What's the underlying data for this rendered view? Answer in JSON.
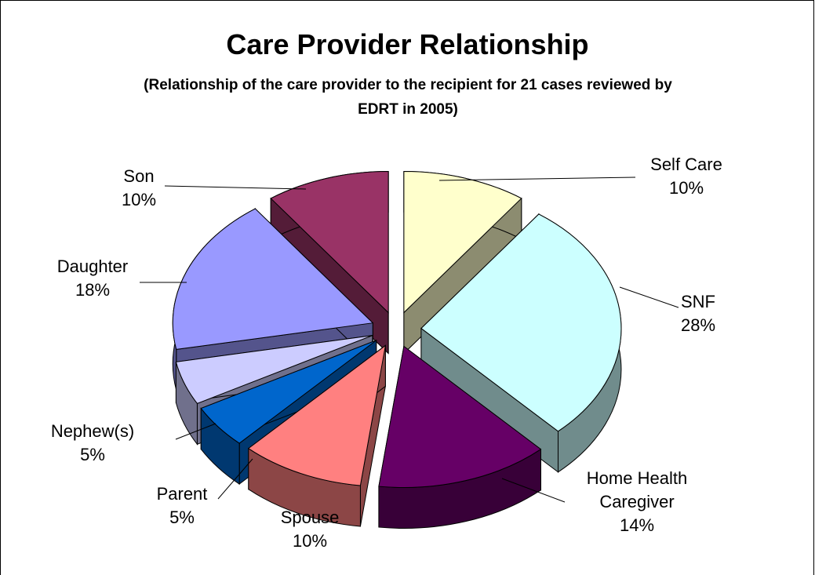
{
  "chart_data": {
    "type": "pie3d",
    "title": "Care Provider Relationship",
    "subtitle": "(Relationship of the care provider to the recipient for 21 cases reviewed by EDRT in 2005)",
    "categories": [
      "Self Care",
      "SNF",
      "Home Health Caregiver",
      "Spouse",
      "Parent",
      "Nephew(s)",
      "Daughter",
      "Son"
    ],
    "values": [
      10,
      28,
      14,
      10,
      5,
      5,
      18,
      10
    ],
    "value_labels": [
      "10%",
      "28%",
      "14%",
      "10%",
      "5%",
      "5%",
      "18%",
      "10%"
    ],
    "colors": [
      "#ffffcc",
      "#ccffff",
      "#660066",
      "#ff8080",
      "#0066cc",
      "#ccccff",
      "#9999ff",
      "#993366"
    ]
  }
}
